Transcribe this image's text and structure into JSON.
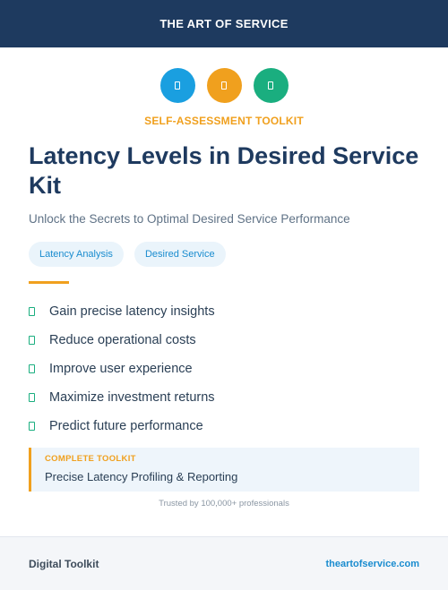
{
  "header": {
    "brand": "THE ART OF SERVICE"
  },
  "icons": [
    {
      "name": "document-icon",
      "color": "#1a9fe0"
    },
    {
      "name": "document-icon",
      "color": "#f0a01e"
    },
    {
      "name": "document-icon",
      "color": "#1aae7f"
    }
  ],
  "kicker": "SELF-ASSESSMENT TOOLKIT",
  "title": "Latency Levels in Desired Service Kit",
  "subtitle": "Unlock the Secrets to Optimal Desired Service Performance",
  "tags": [
    "Latency Analysis",
    "Desired Service"
  ],
  "benefits": [
    "Gain precise latency insights",
    "Reduce operational costs",
    "Improve user experience",
    "Maximize investment returns",
    "Predict future performance"
  ],
  "callout": {
    "label": "COMPLETE TOOLKIT",
    "text": "Precise Latency Profiling & Reporting"
  },
  "trusted": "Trusted by 100,000+ professionals",
  "footer": {
    "left": "Digital Toolkit",
    "right": "theartofservice.com"
  }
}
